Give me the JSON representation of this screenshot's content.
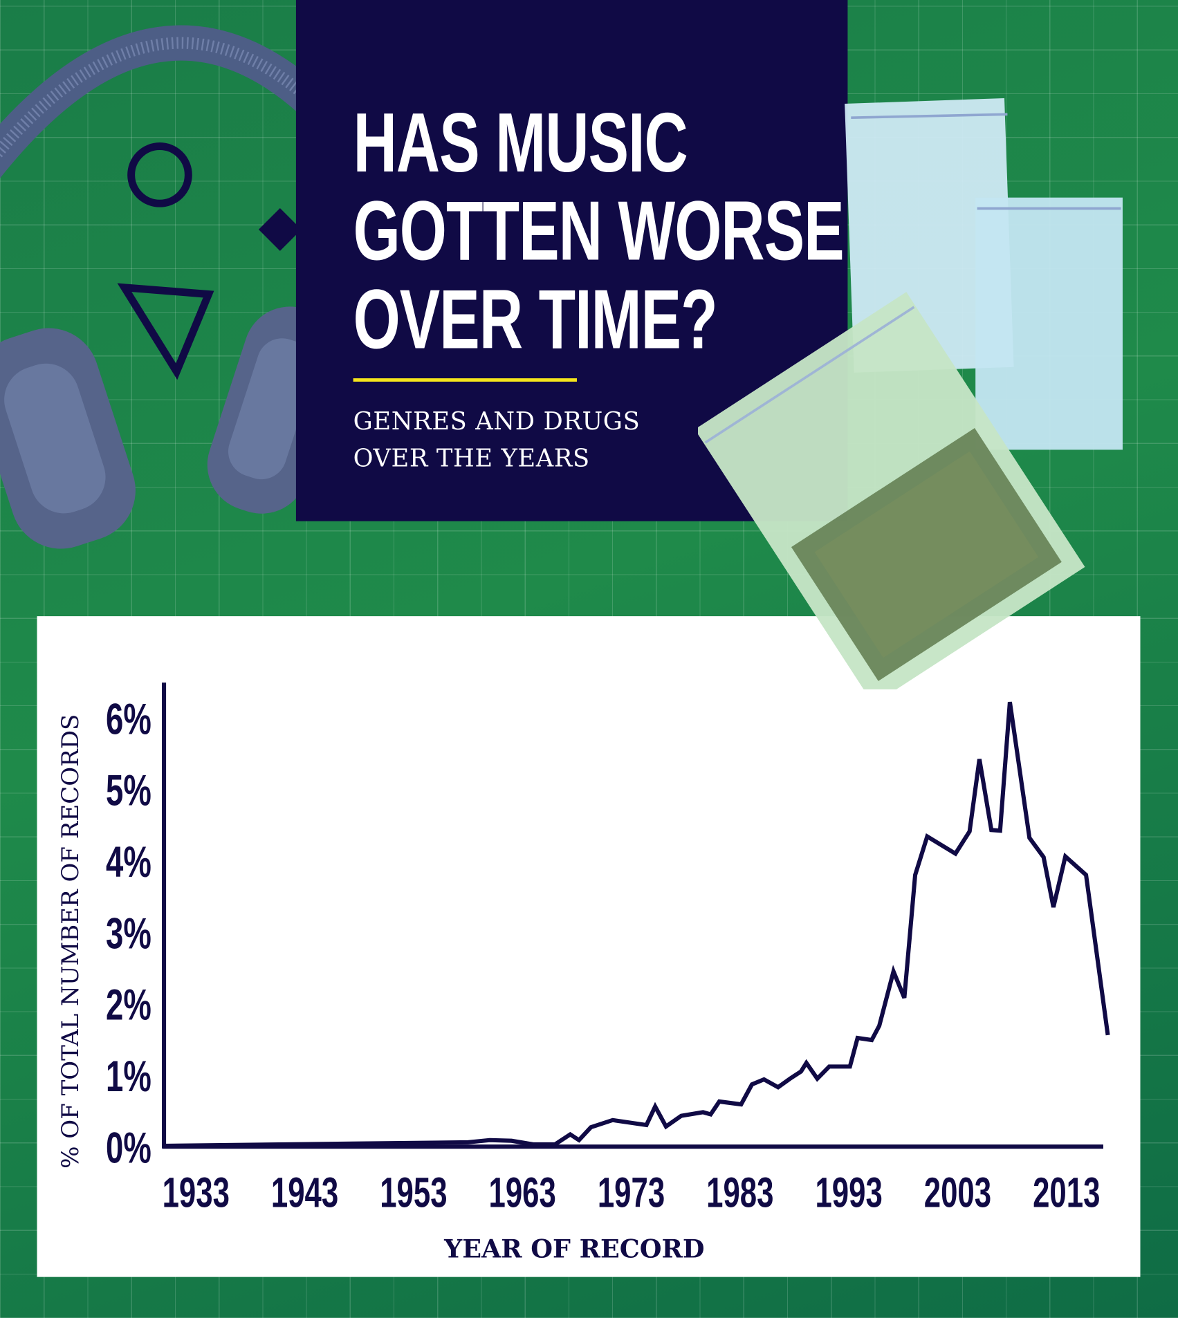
{
  "header": {
    "title_lines": [
      "HAS MUSIC",
      "GOTTEN WORSE",
      "OVER TIME?"
    ],
    "subtitle_lines": [
      "GENRES AND DRUGS",
      "OVER THE YEARS"
    ]
  },
  "colors": {
    "background": "#1b7f47",
    "navy": "#100a45",
    "accent": "#f5e51c",
    "line": "#100a45"
  },
  "decorations": [
    "headphones-image",
    "circle-icon",
    "diamond-icon",
    "triangle-icon",
    "plastic-bags-image"
  ],
  "chart_data": {
    "type": "line",
    "title": "",
    "xlabel": "YEAR OF RECORD",
    "ylabel": "% OF TOTAL NUMBER OF RECORDS",
    "xlim": [
      1930,
      2017
    ],
    "ylim": [
      0,
      6
    ],
    "x_ticks": [
      1933,
      1943,
      1953,
      1963,
      1973,
      1983,
      1993,
      2003,
      2013
    ],
    "x_tick_labels": [
      "1933",
      "1943",
      "1953",
      "1963",
      "1973",
      "1983",
      "1993",
      "2003",
      "2013"
    ],
    "y_ticks": [
      0,
      1,
      2,
      3,
      4,
      5,
      6
    ],
    "y_tick_labels": [
      "0%",
      "1%",
      "2%",
      "3%",
      "4%",
      "5%",
      "6%"
    ],
    "grid": false,
    "series": [
      {
        "x": [
          1930,
          1958,
          1960,
          1962,
          1964,
          1966,
          1967.4,
          1968.2,
          1969.3,
          1971.3,
          1974.4,
          1975.2,
          1976.2,
          1977.6,
          1979.6,
          1980.3,
          1981.1,
          1983.1,
          1984.1,
          1985.2,
          1986.5,
          1987.6,
          1988.6,
          1989.1,
          1990.1,
          1991.2,
          1993.1,
          1993.8,
          1995.1,
          1995.8,
          1997.1,
          1998.1,
          1999.1,
          2000.2,
          2002.8,
          2004.1,
          2005.0,
          2006.1,
          2006.9,
          2007.8,
          2009.6,
          2010.9,
          2011.8,
          2012.9,
          2014.8,
          2016.8
        ],
        "y": [
          0.0,
          0.05,
          0.08,
          0.07,
          0.02,
          0.02,
          0.16,
          0.08,
          0.26,
          0.36,
          0.29,
          0.55,
          0.27,
          0.42,
          0.47,
          0.44,
          0.62,
          0.58,
          0.86,
          0.93,
          0.82,
          0.94,
          1.04,
          1.16,
          0.94,
          1.11,
          1.11,
          1.51,
          1.48,
          1.68,
          2.44,
          2.07,
          3.79,
          4.33,
          4.09,
          4.4,
          5.41,
          4.42,
          4.41,
          6.21,
          4.31,
          4.04,
          3.34,
          4.05,
          3.79,
          1.55
        ]
      }
    ]
  }
}
